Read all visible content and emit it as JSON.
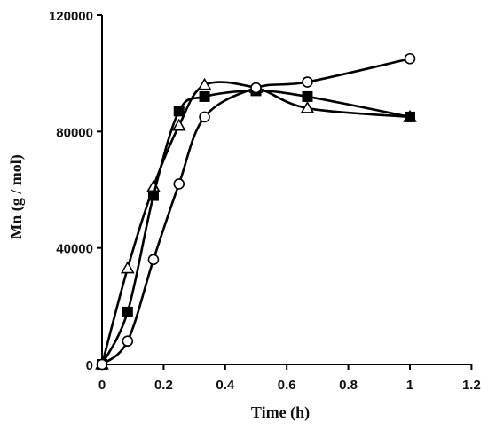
{
  "chart_data": {
    "type": "line",
    "title": "",
    "xlabel": "Time (h)",
    "ylabel": "Mn  (g / mol)",
    "xlim": [
      0,
      1.2
    ],
    "ylim": [
      0,
      120000
    ],
    "x_ticks": [
      0,
      0.2,
      0.4,
      0.6,
      0.8,
      1,
      1.2
    ],
    "x_tick_labels": [
      "0",
      "0.2",
      "0.4",
      "0.6",
      "0.8",
      "1",
      "1.2"
    ],
    "y_ticks": [
      0,
      40000,
      80000,
      120000
    ],
    "y_tick_labels": [
      "0",
      "40000",
      "80000",
      "120000"
    ],
    "grid": false,
    "legend": "none",
    "smooth": true,
    "series": [
      {
        "marker": "open-triangle",
        "color": "#000000",
        "x": [
          0,
          0.083,
          0.167,
          0.25,
          0.333,
          0.5,
          0.667,
          1.0
        ],
        "y": [
          0,
          33000,
          61000,
          82000,
          96000,
          95000,
          88000,
          85000
        ]
      },
      {
        "marker": "filled-square",
        "color": "#000000",
        "x": [
          0,
          0.083,
          0.167,
          0.25,
          0.333,
          0.5,
          0.667,
          1.0
        ],
        "y": [
          0,
          18000,
          58000,
          87000,
          92000,
          94000,
          92000,
          85000
        ]
      },
      {
        "marker": "open-circle",
        "color": "#000000",
        "x": [
          0,
          0.083,
          0.167,
          0.25,
          0.333,
          0.5,
          0.667,
          1.0
        ],
        "y": [
          0,
          8000,
          36000,
          62000,
          85000,
          95000,
          97000,
          105000
        ]
      }
    ]
  }
}
